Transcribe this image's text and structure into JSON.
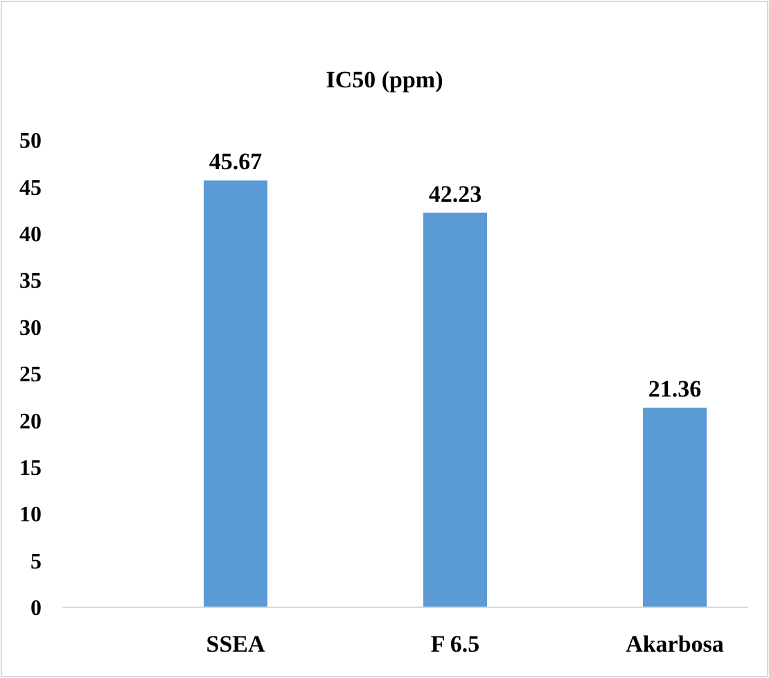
{
  "chart_data": {
    "type": "bar",
    "title": "IC50 (ppm)",
    "categories": [
      "SSEA",
      "F 6.5",
      "Akarbosa"
    ],
    "values": [
      45.67,
      42.23,
      21.36
    ],
    "color": "#5b9bd5",
    "ylim": [
      0,
      50
    ],
    "yticks": [
      0,
      5,
      10,
      15,
      20,
      25,
      30,
      35,
      40,
      45,
      50
    ],
    "data_labels": true
  }
}
